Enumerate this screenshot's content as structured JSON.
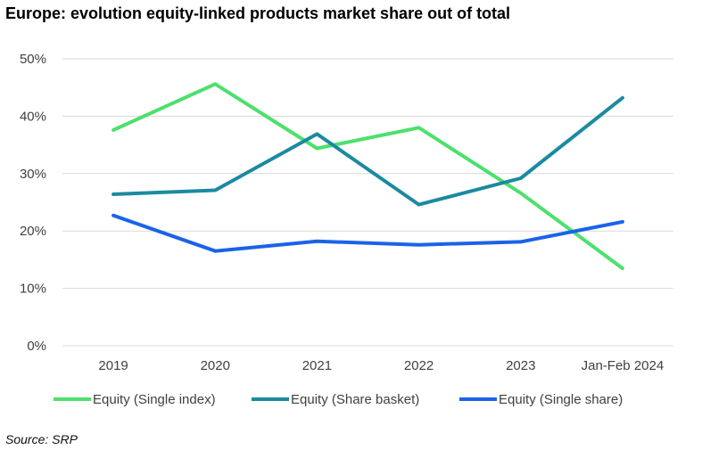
{
  "title": "Europe: evolution equity-linked products market share out of total",
  "source": "Source: SRP",
  "chart_data": {
    "type": "line",
    "title": "Europe: evolution equity-linked products market share out of total",
    "xlabel": "",
    "ylabel": "",
    "categories": [
      "2019",
      "2020",
      "2021",
      "2022",
      "2023",
      "Jan-Feb 2024"
    ],
    "ylim": [
      0,
      50
    ],
    "yticks": [
      0,
      10,
      20,
      30,
      40,
      50
    ],
    "ytick_labels": [
      "0%",
      "10%",
      "20%",
      "30%",
      "40%",
      "50%"
    ],
    "grid": true,
    "legend_position": "bottom",
    "series": [
      {
        "name": "Equity (Single index)",
        "color": "#4ce06c",
        "values": [
          37.6,
          45.6,
          34.4,
          38.0,
          26.6,
          13.5
        ]
      },
      {
        "name": "Equity (Share basket)",
        "color": "#1b8aa0",
        "values": [
          26.4,
          27.1,
          36.9,
          24.6,
          29.2,
          43.2
        ]
      },
      {
        "name": "Equity (Single share)",
        "color": "#1a63e8",
        "values": [
          22.7,
          16.5,
          18.2,
          17.6,
          18.1,
          21.6
        ]
      }
    ]
  }
}
